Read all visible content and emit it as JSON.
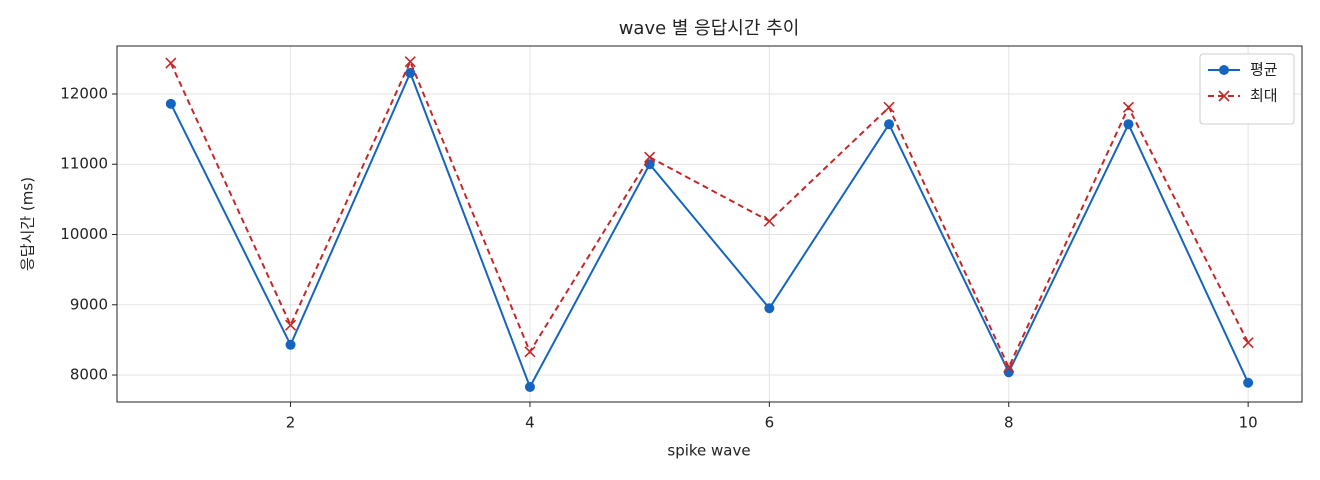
{
  "chart_data": {
    "type": "line",
    "title": "wave 별 응답시간 추이",
    "x_label": "spike wave",
    "y_label": "응답시간 (ms)",
    "x": [
      1,
      2,
      3,
      4,
      5,
      6,
      7,
      8,
      9,
      10
    ],
    "series": [
      {
        "name": "평균",
        "color": "#1565c0",
        "marker": "o",
        "linestyle": "solid",
        "values": [
          11860,
          8430,
          12300,
          7830,
          11000,
          8950,
          11570,
          8040,
          11570,
          7890
        ]
      },
      {
        "name": "최대",
        "color": "#c62828",
        "marker": "x",
        "linestyle": "dashed",
        "values": [
          12440,
          8710,
          12460,
          8330,
          11100,
          10190,
          11810,
          8110,
          11810,
          8460
        ]
      }
    ],
    "xlim": [
      0.55,
      10.45
    ],
    "ylim": [
      7616,
      12683
    ],
    "xticks": [
      2,
      4,
      6,
      8,
      10
    ],
    "yticks": [
      8000,
      9000,
      10000,
      11000,
      12000
    ],
    "grid": true,
    "legend": "upper right"
  }
}
